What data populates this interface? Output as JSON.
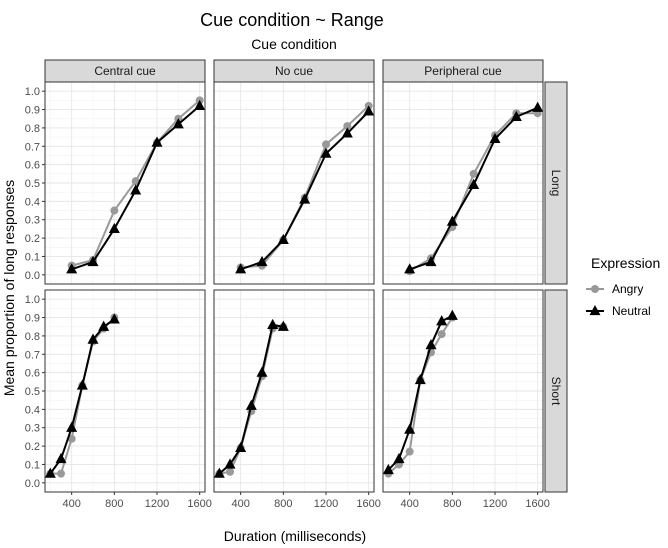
{
  "chart_data": {
    "type": "line",
    "title": "Cue condition ~ Range",
    "subtitle": "Cue condition",
    "xlabel": "Duration (milliseconds)",
    "ylabel": "Mean proportion of long responses",
    "xlim": [
      150,
      1650
    ],
    "ylim": [
      -0.05,
      1.05
    ],
    "x_ticks": [
      400,
      800,
      1200,
      1600
    ],
    "x_tick_labels": [
      "400",
      "800",
      "1200",
      "1600"
    ],
    "y_ticks": [
      0.0,
      0.1,
      0.2,
      0.3,
      0.4,
      0.5,
      0.6,
      0.7,
      0.8,
      0.9,
      1.0
    ],
    "y_tick_labels": [
      "0.0",
      "0.1",
      "0.2",
      "0.3",
      "0.4",
      "0.5",
      "0.6",
      "0.7",
      "0.8",
      "0.9",
      "1.0"
    ],
    "grid": true,
    "columns": [
      "Central cue",
      "No cue",
      "Peripheral cue"
    ],
    "rows": [
      "Long",
      "Short"
    ],
    "legend": {
      "title": "Expression",
      "position": "right",
      "entries": [
        {
          "name": "Angry",
          "color": "#999999",
          "marker": "circle"
        },
        {
          "name": "Neutral",
          "color": "#000000",
          "marker": "triangle"
        }
      ]
    },
    "x_long": [
      400,
      600,
      800,
      1000,
      1200,
      1400,
      1600
    ],
    "x_short": [
      200,
      300,
      400,
      500,
      600,
      700,
      800
    ],
    "panels": [
      {
        "row": "Long",
        "column": "Central cue",
        "angry": [
          0.05,
          0.08,
          0.35,
          0.51,
          0.72,
          0.85,
          0.95
        ],
        "neutral": [
          0.03,
          0.07,
          0.25,
          0.46,
          0.72,
          0.82,
          0.92
        ]
      },
      {
        "row": "Long",
        "column": "No cue",
        "angry": [
          0.04,
          0.05,
          0.19,
          0.42,
          0.71,
          0.81,
          0.92
        ],
        "neutral": [
          0.03,
          0.07,
          0.19,
          0.41,
          0.66,
          0.77,
          0.89
        ]
      },
      {
        "row": "Long",
        "column": "Peripheral cue",
        "angry": [
          0.02,
          0.09,
          0.26,
          0.55,
          0.76,
          0.88,
          0.88
        ],
        "neutral": [
          0.03,
          0.07,
          0.29,
          0.49,
          0.74,
          0.86,
          0.91
        ]
      },
      {
        "row": "Short",
        "column": "Central cue",
        "angry": [
          0.05,
          0.05,
          0.24,
          0.53,
          0.77,
          0.84,
          0.9
        ],
        "neutral": [
          0.05,
          0.13,
          0.3,
          0.53,
          0.78,
          0.85,
          0.89
        ]
      },
      {
        "row": "Short",
        "column": "No cue",
        "angry": [
          0.05,
          0.06,
          0.19,
          0.39,
          0.58,
          0.84,
          0.85
        ],
        "neutral": [
          0.05,
          0.1,
          0.19,
          0.42,
          0.6,
          0.86,
          0.85
        ]
      },
      {
        "row": "Short",
        "column": "Peripheral cue",
        "angry": [
          0.05,
          0.1,
          0.17,
          0.56,
          0.71,
          0.81,
          0.9
        ],
        "neutral": [
          0.07,
          0.13,
          0.29,
          0.56,
          0.75,
          0.88,
          0.91
        ]
      }
    ]
  }
}
